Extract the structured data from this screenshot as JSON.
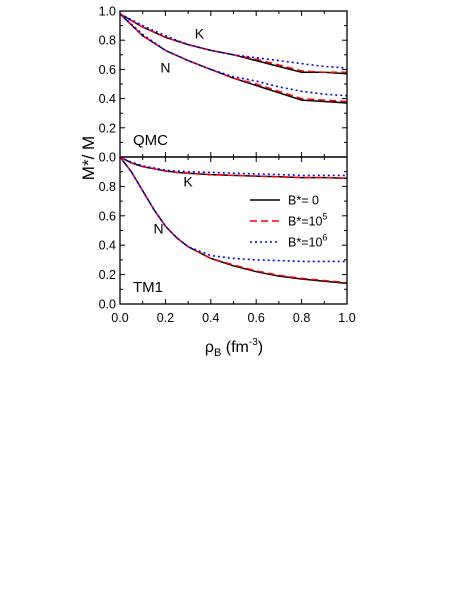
{
  "ylabel": "M*/ M",
  "xlabel": {
    "main": "ρ",
    "sub": "B",
    "unit_pre": " (fm",
    "unit_sup": "-3",
    "unit_post": ")"
  },
  "colors": {
    "b0": "#000000",
    "b5": "#ff0000",
    "b6": "#0000ff"
  },
  "legend": {
    "placement": "right, lower panel",
    "items": [
      {
        "key": "b0",
        "pre": "B*= 0",
        "sup": ""
      },
      {
        "key": "b5",
        "pre": "B*=10",
        "sup": "5"
      },
      {
        "key": "b6",
        "pre": "B*=10",
        "sup": "6"
      }
    ]
  },
  "chart_data": [
    {
      "type": "line",
      "panel": "QMC",
      "panel_label": "QMC",
      "xlim": [
        0,
        1
      ],
      "ylim": [
        0,
        1
      ],
      "xticks": [
        "0.0",
        "0.2",
        "0.4",
        "0.6",
        "0.8",
        "1.0"
      ],
      "yticks": [
        "0.0",
        "0.2",
        "0.4",
        "0.6",
        "0.8",
        "1.0"
      ],
      "curve_labels": [
        {
          "text": "K",
          "x": 0.35,
          "y": 0.81
        },
        {
          "text": "N",
          "x": 0.2,
          "y": 0.58
        }
      ],
      "x": [
        0,
        0.1,
        0.2,
        0.3,
        0.4,
        0.5,
        0.6,
        0.7,
        0.8,
        0.9,
        1.0
      ],
      "series": [
        {
          "key": "b0",
          "name": "B*= 0",
          "group": "K",
          "values": [
            0.98,
            0.89,
            0.82,
            0.77,
            0.73,
            0.7,
            0.66,
            0.62,
            0.58,
            0.58,
            0.57
          ]
        },
        {
          "key": "b5",
          "name": "B*=10^5",
          "group": "K",
          "values": [
            0.98,
            0.89,
            0.82,
            0.77,
            0.73,
            0.7,
            0.67,
            0.63,
            0.59,
            0.58,
            0.58
          ]
        },
        {
          "key": "b6",
          "name": "B*=10^6",
          "group": "K",
          "values": [
            0.98,
            0.9,
            0.83,
            0.77,
            0.73,
            0.7,
            0.68,
            0.66,
            0.64,
            0.62,
            0.61
          ]
        },
        {
          "key": "b0",
          "name": "B*= 0",
          "group": "N",
          "values": [
            0.98,
            0.83,
            0.73,
            0.66,
            0.6,
            0.54,
            0.49,
            0.44,
            0.39,
            0.38,
            0.37
          ]
        },
        {
          "key": "b5",
          "name": "B*=10^5",
          "group": "N",
          "values": [
            0.98,
            0.83,
            0.73,
            0.66,
            0.6,
            0.54,
            0.5,
            0.45,
            0.4,
            0.39,
            0.38
          ]
        },
        {
          "key": "b6",
          "name": "B*=10^6",
          "group": "N",
          "values": [
            0.98,
            0.84,
            0.73,
            0.66,
            0.6,
            0.55,
            0.52,
            0.48,
            0.45,
            0.43,
            0.42
          ]
        }
      ]
    },
    {
      "type": "line",
      "panel": "TM1",
      "panel_label": "TM1",
      "xlim": [
        0,
        1
      ],
      "ylim": [
        0,
        1
      ],
      "xticks": [
        "0.0",
        "0.2",
        "0.4",
        "0.6",
        "0.8",
        "1.0"
      ],
      "yticks": [
        "0.0",
        "0.2",
        "0.4",
        "0.6",
        "0.8",
        ""
      ],
      "curve_labels": [
        {
          "text": "K",
          "x": 0.3,
          "y": 0.8
        },
        {
          "text": "N",
          "x": 0.17,
          "y": 0.48
        }
      ],
      "x": [
        0,
        0.05,
        0.1,
        0.15,
        0.2,
        0.25,
        0.3,
        0.4,
        0.5,
        0.6,
        0.7,
        0.8,
        0.9,
        1.0
      ],
      "series": [
        {
          "key": "b0",
          "name": "B*= 0",
          "group": "K",
          "values": [
            1.0,
            0.96,
            0.935,
            0.92,
            0.905,
            0.895,
            0.89,
            0.88,
            0.875,
            0.87,
            0.865,
            0.86,
            0.86,
            0.855
          ]
        },
        {
          "key": "b5",
          "name": "B*=10^5",
          "group": "K",
          "values": [
            1.0,
            0.96,
            0.935,
            0.92,
            0.905,
            0.895,
            0.89,
            0.88,
            0.875,
            0.87,
            0.865,
            0.86,
            0.86,
            0.855
          ]
        },
        {
          "key": "b6",
          "name": "B*=10^6",
          "group": "K",
          "values": [
            1.0,
            0.965,
            0.94,
            0.925,
            0.91,
            0.905,
            0.9,
            0.895,
            0.89,
            0.885,
            0.88,
            0.875,
            0.875,
            0.875
          ]
        },
        {
          "key": "b0",
          "name": "B*= 0",
          "group": "N",
          "values": [
            1.0,
            0.9,
            0.77,
            0.64,
            0.53,
            0.45,
            0.39,
            0.31,
            0.26,
            0.22,
            0.19,
            0.17,
            0.155,
            0.14
          ]
        },
        {
          "key": "b5",
          "name": "B*=10^5",
          "group": "N",
          "values": [
            1.0,
            0.9,
            0.77,
            0.64,
            0.53,
            0.45,
            0.39,
            0.31,
            0.265,
            0.225,
            0.195,
            0.175,
            0.16,
            0.145
          ]
        },
        {
          "key": "b6",
          "name": "B*=10^6",
          "group": "N",
          "values": [
            1.0,
            0.9,
            0.77,
            0.64,
            0.53,
            0.45,
            0.39,
            0.33,
            0.31,
            0.3,
            0.295,
            0.29,
            0.29,
            0.29
          ]
        }
      ]
    }
  ]
}
